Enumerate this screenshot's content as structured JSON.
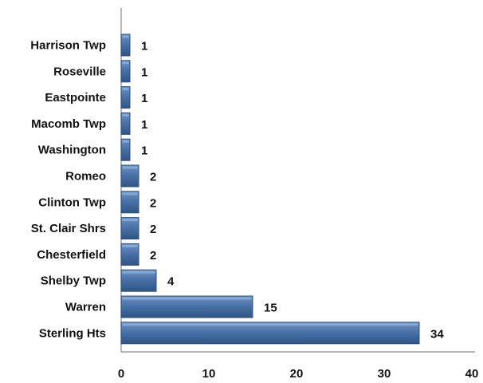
{
  "chart_data": {
    "type": "bar",
    "orientation": "horizontal",
    "title": "",
    "xlabel": "",
    "ylabel": "",
    "categories": [
      "Sterling Hts",
      "Warren",
      "Shelby Twp",
      "Chesterfield",
      "St. Clair Shrs",
      "Clinton Twp",
      "Romeo",
      "Washington",
      "Macomb Twp",
      "Eastpointe",
      "Roseville",
      "Harrison Twp"
    ],
    "values": [
      34,
      15,
      4,
      2,
      2,
      2,
      2,
      1,
      1,
      1,
      1,
      1
    ],
    "xlim": [
      0,
      40
    ],
    "xticks": [
      0,
      10,
      20,
      30,
      40
    ],
    "grid": false,
    "legend": "none",
    "bar_color": "#4a72a8",
    "bar_edge_color": "#2c4f80"
  }
}
